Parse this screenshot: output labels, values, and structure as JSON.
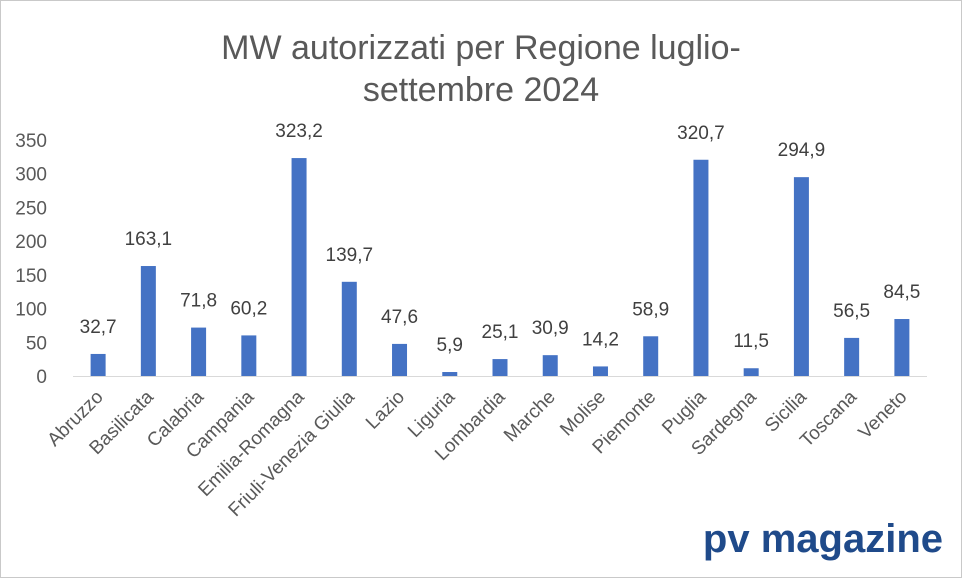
{
  "chart_data": {
    "type": "bar",
    "title_lines": [
      "MW autorizzati per Regione luglio-",
      "settembre 2024"
    ],
    "categories": [
      "Abruzzo",
      "Basilicata",
      "Calabria",
      "Campania",
      "Emilia-Romagna",
      "Friuli-Venezia Giulia",
      "Lazio",
      "Liguria",
      "Lombardia",
      "Marche",
      "Molise",
      "Piemonte",
      "Puglia",
      "Sardegna",
      "Sicilia",
      "Toscana",
      "Veneto"
    ],
    "values": [
      32.7,
      163.1,
      71.8,
      60.2,
      323.2,
      139.7,
      47.6,
      5.9,
      25.1,
      30.9,
      14.2,
      58.9,
      320.7,
      11.5,
      294.9,
      56.5,
      84.5
    ],
    "value_labels": [
      "32,7",
      "163,1",
      "71,8",
      "60,2",
      "323,2",
      "139,7",
      "47,6",
      "5,9",
      "25,1",
      "30,9",
      "14,2",
      "58,9",
      "320,7",
      "11,5",
      "294,9",
      "56,5",
      "84,5"
    ],
    "yticks": [
      0,
      50,
      100,
      150,
      200,
      250,
      300,
      350
    ],
    "ylim": [
      0,
      350
    ],
    "grid": false,
    "legend": "none",
    "bar_color": "#4472c4"
  },
  "watermark": "pv magazine"
}
